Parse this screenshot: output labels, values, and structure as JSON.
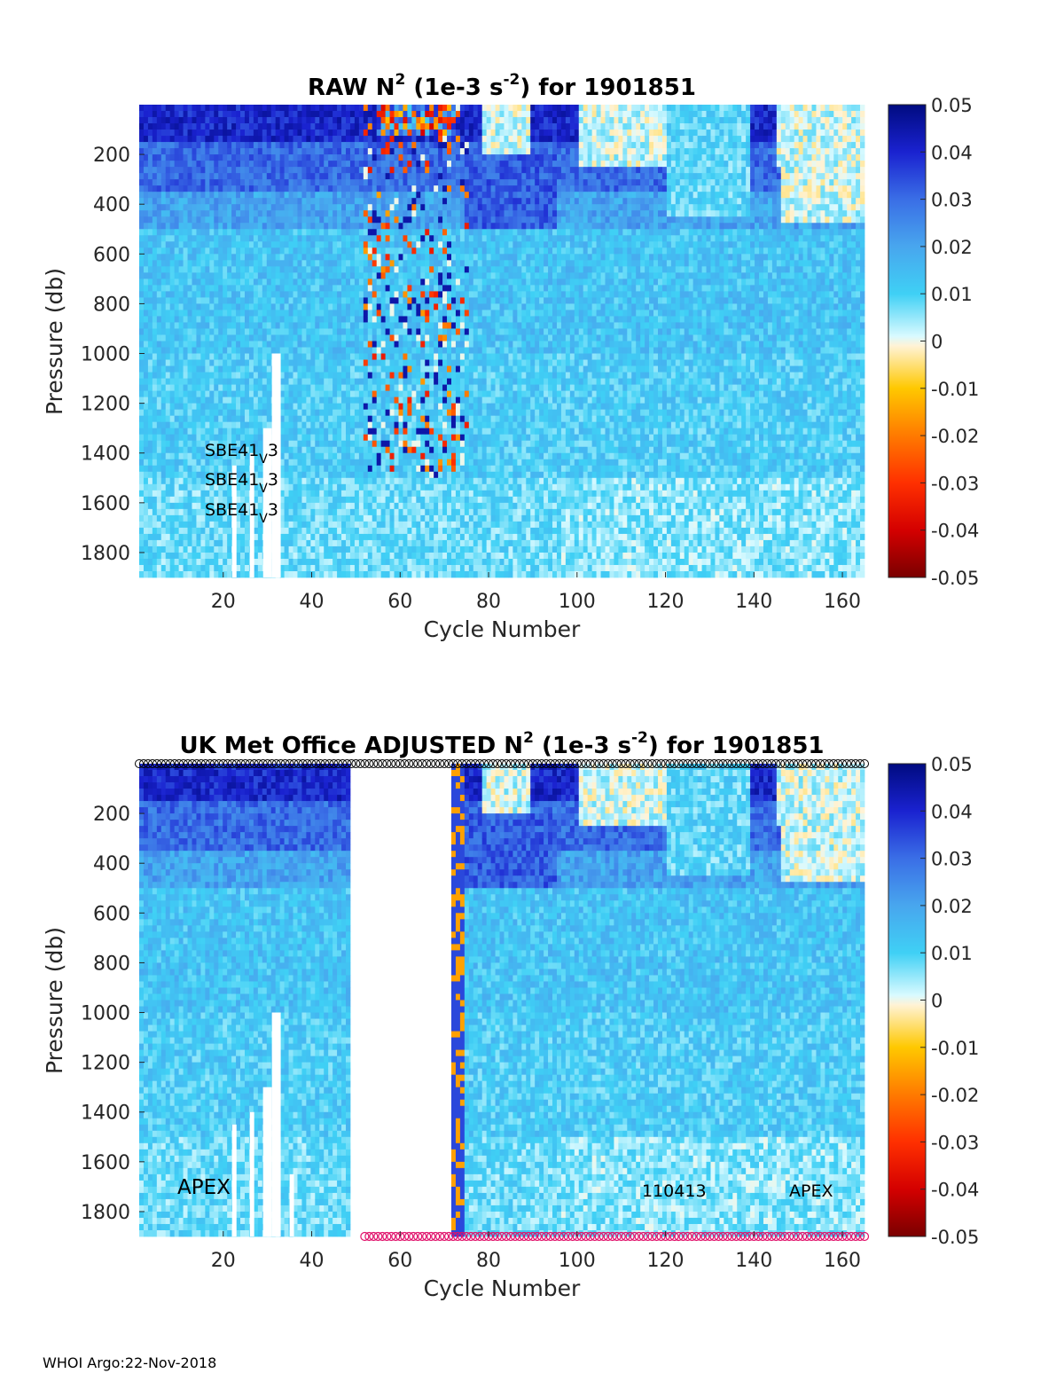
{
  "footer": "WHOI Argo:22-Nov-2018",
  "chart_data": [
    {
      "type": "heatmap",
      "title": "RAW N",
      "title_sup": "2",
      "title_mid": " (1e-3 s",
      "title_sup2": "-2",
      "title_end": ") for 1901851",
      "xlabel": "Cycle Number",
      "ylabel": "Pressure (db)",
      "xlim": [
        1,
        165
      ],
      "ylim": [
        1900,
        0
      ],
      "xticks": [
        20,
        40,
        60,
        80,
        100,
        120,
        140,
        160
      ],
      "yticks": [
        200,
        400,
        600,
        800,
        1000,
        1200,
        1400,
        1600,
        1800
      ],
      "colorbar": {
        "range": [
          -0.05,
          0.05
        ],
        "ticks": [
          "0.05",
          "0.04",
          "0.03",
          "0.02",
          "0.01",
          "0",
          "-0.01",
          "-0.02",
          "-0.03",
          "-0.04",
          "-0.05"
        ],
        "colors": [
          "#7a0000",
          "#d42000",
          "#ff7a00",
          "#ffc800",
          "#fff3d6",
          "#bff4ff",
          "#3fd0f5",
          "#3a8ae8",
          "#2a3fe0",
          "#000b80"
        ]
      },
      "annotations": [
        {
          "text": "SBE41",
          "sub": "V",
          "tail": "3"
        },
        {
          "text": "SBE41",
          "sub": "V",
          "tail": "3"
        },
        {
          "text": "SBE41",
          "sub": "V",
          "tail": "3"
        }
      ],
      "gaps": [
        {
          "x": [
            22,
            23
          ],
          "p": [
            1450,
            1900
          ]
        },
        {
          "x": [
            26,
            27
          ],
          "p": [
            1400,
            1900
          ]
        },
        {
          "x": [
            29,
            31
          ],
          "p": [
            1300,
            1900
          ]
        },
        {
          "x": [
            31,
            33
          ],
          "p": [
            1000,
            1900
          ]
        }
      ]
    },
    {
      "type": "heatmap",
      "title": "UK Met Office  ADJUSTED N",
      "title_sup": "2",
      "title_mid": " (1e-3 s",
      "title_sup2": "-2",
      "title_end": ") for 1901851",
      "xlabel": "Cycle Number",
      "ylabel": "Pressure (db)",
      "xlim": [
        1,
        165
      ],
      "ylim": [
        1900,
        0
      ],
      "xticks": [
        20,
        40,
        60,
        80,
        100,
        120,
        140,
        160
      ],
      "yticks": [
        200,
        400,
        600,
        800,
        1000,
        1200,
        1400,
        1600,
        1800
      ],
      "colorbar": {
        "range": [
          -0.05,
          0.05
        ],
        "ticks": [
          "0.05",
          "0.04",
          "0.03",
          "0.02",
          "0.01",
          "0",
          "-0.01",
          "-0.02",
          "-0.03",
          "-0.04",
          "-0.05"
        ],
        "colors": [
          "#7a0000",
          "#d42000",
          "#ff7a00",
          "#ffc800",
          "#fff3d6",
          "#bff4ff",
          "#3fd0f5",
          "#3a8ae8",
          "#2a3fe0",
          "#000b80"
        ]
      },
      "annotations": [
        {
          "text": "APEX"
        },
        {
          "text": "110413"
        },
        {
          "text": "APEX"
        }
      ],
      "missing_cycles": [
        49,
        72
      ],
      "top_markers": {
        "x": [
          1,
          165
        ],
        "color": "#000000"
      },
      "bottom_markers": {
        "x": [
          52,
          165
        ],
        "color": "#e0106a"
      },
      "gaps": [
        {
          "x": [
            22,
            23
          ],
          "p": [
            1450,
            1900
          ]
        },
        {
          "x": [
            26,
            27
          ],
          "p": [
            1400,
            1900
          ]
        },
        {
          "x": [
            29,
            31
          ],
          "p": [
            1300,
            1900
          ]
        },
        {
          "x": [
            31,
            33
          ],
          "p": [
            1000,
            1900
          ]
        },
        {
          "x": [
            35,
            36
          ],
          "p": [
            1650,
            1900
          ]
        }
      ]
    }
  ]
}
